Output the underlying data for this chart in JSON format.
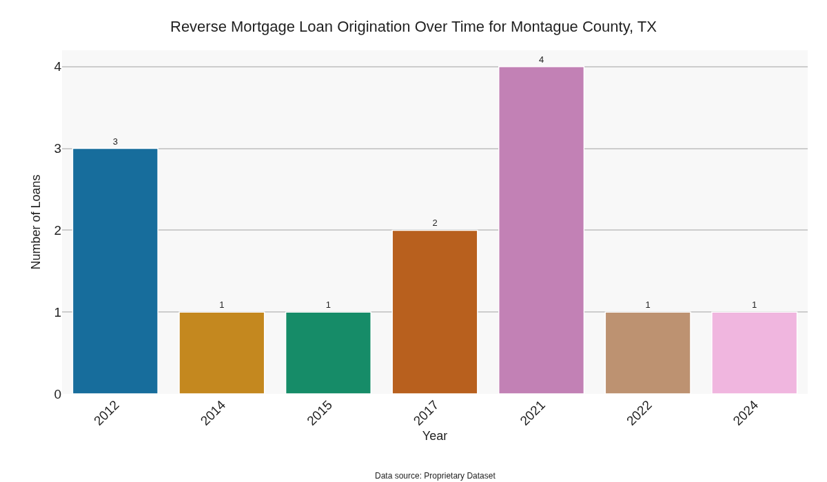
{
  "chart_data": {
    "type": "bar",
    "title": "Reverse Mortgage Loan Origination Over Time for Montague County, TX",
    "xlabel": "Year",
    "ylabel": "Number of Loans",
    "categories": [
      "2012",
      "2014",
      "2015",
      "2017",
      "2021",
      "2022",
      "2024"
    ],
    "values": [
      3,
      1,
      1,
      2,
      4,
      1,
      1
    ],
    "colors": [
      "#176d9c",
      "#c4881f",
      "#168c68",
      "#b8601e",
      "#c281b5",
      "#bd9271",
      "#f0b6df"
    ],
    "ylim": [
      0,
      4.2
    ],
    "yticks": [
      0,
      1,
      2,
      3,
      4
    ],
    "grid": "y",
    "data_labels": true,
    "annotations": [
      "Data source: Proprietary Dataset"
    ]
  }
}
